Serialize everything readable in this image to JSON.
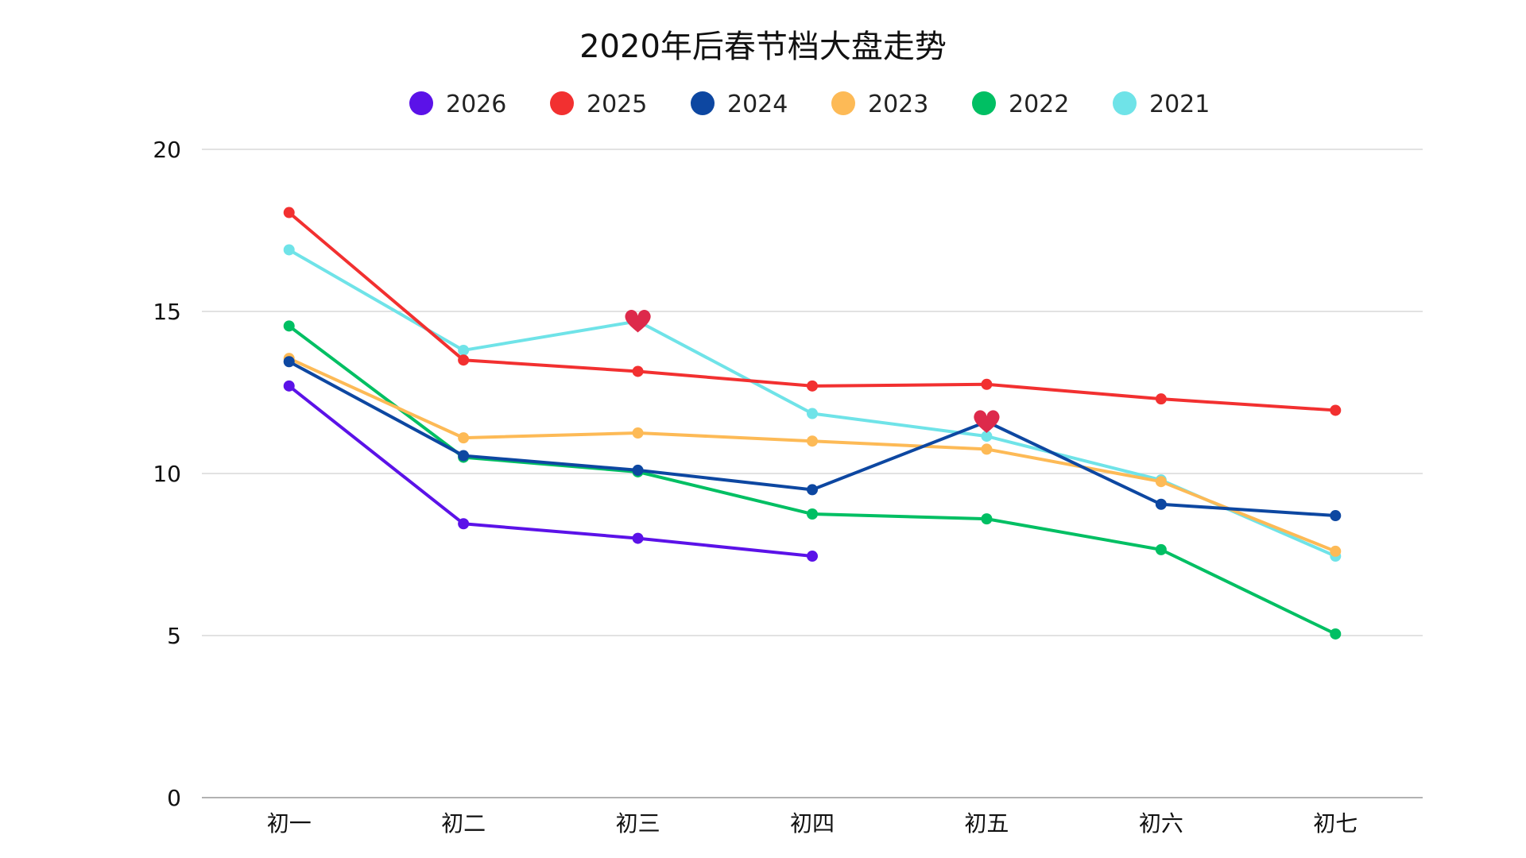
{
  "chart_data": {
    "type": "line",
    "title": "2020年后春节档大盘走势",
    "xlabel": "",
    "ylabel": "",
    "categories": [
      "初一",
      "初二",
      "初三",
      "初四",
      "初五",
      "初六",
      "初七"
    ],
    "ylim": [
      0,
      20
    ],
    "yticks": [
      0,
      5,
      10,
      15,
      20
    ],
    "grid": true,
    "legend_position": "top",
    "series": [
      {
        "name": "2026",
        "color": "#5B12E8",
        "values": [
          12.7,
          8.45,
          8.0,
          7.45,
          null,
          null,
          null
        ]
      },
      {
        "name": "2025",
        "color": "#F23030",
        "values": [
          18.05,
          13.5,
          13.15,
          12.7,
          12.75,
          12.3,
          11.95
        ]
      },
      {
        "name": "2024",
        "color": "#0D47A1",
        "values": [
          13.45,
          10.55,
          10.1,
          9.5,
          11.6,
          9.05,
          8.7
        ]
      },
      {
        "name": "2023",
        "color": "#FDBA56",
        "values": [
          13.55,
          11.1,
          11.25,
          11.0,
          10.75,
          9.75,
          7.6
        ]
      },
      {
        "name": "2022",
        "color": "#00BF63",
        "values": [
          14.55,
          10.5,
          10.05,
          8.75,
          8.6,
          7.65,
          5.05
        ]
      },
      {
        "name": "2021",
        "color": "#6FE3E8",
        "values": [
          16.9,
          13.8,
          14.7,
          11.85,
          11.15,
          9.8,
          7.45
        ]
      }
    ],
    "markers": [
      {
        "series": "2021",
        "category": "初三",
        "icon": "heart-icon",
        "color": "#DD2A4B"
      },
      {
        "series": "2024",
        "category": "初五",
        "icon": "heart-icon",
        "color": "#DD2A4B"
      }
    ]
  }
}
